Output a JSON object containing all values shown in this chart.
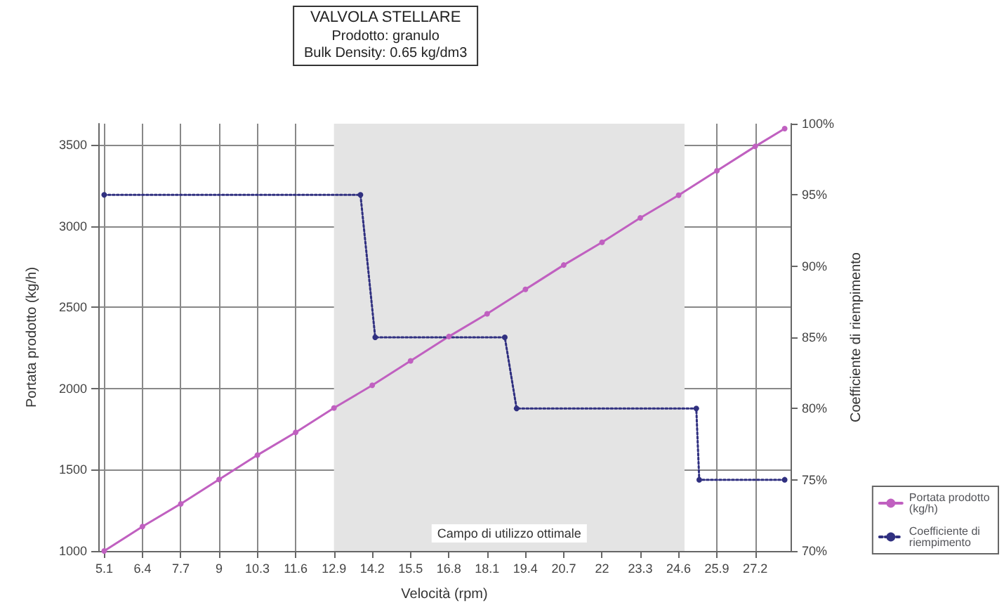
{
  "chart_data": {
    "type": "line",
    "title": "VALVOLA STELLARE",
    "subtitle": "Prodotto: granulo\nBulk Density: 0.65 kg/dm3",
    "xlabel": "Velocità (rpm)",
    "ylabel": "Portata prodotto (kg/h)",
    "y2label": "Coefficiente di riempimento",
    "xlim": [
      4.9,
      28.4
    ],
    "xticks": [
      5.1,
      6.4,
      7.7,
      9.0,
      10.3,
      11.6,
      12.9,
      14.2,
      15.5,
      16.8,
      18.1,
      19.4,
      20.7,
      22.0,
      23.3,
      24.6,
      25.9,
      27.2
    ],
    "ylim": [
      1000,
      3630
    ],
    "yticks": [
      1000,
      1500,
      2000,
      2500,
      3000,
      3500
    ],
    "y2lim": [
      70,
      100
    ],
    "y2ticks": [
      {
        "value": 70,
        "label": "70%"
      },
      {
        "value": 75,
        "label": "75%"
      },
      {
        "value": 80,
        "label": "80%"
      },
      {
        "value": 85,
        "label": "85%"
      },
      {
        "value": 90,
        "label": "90%"
      },
      {
        "value": 95,
        "label": "95%"
      },
      {
        "value": 100,
        "label": "100%"
      }
    ],
    "series": [
      {
        "name": "Portata prodotto (kg/h)",
        "color": "#c060c0",
        "line_style": "solid",
        "x": [
          5.1,
          6.4,
          7.7,
          9.0,
          10.3,
          11.6,
          12.9,
          14.2,
          15.5,
          16.8,
          18.1,
          19.4,
          20.7,
          22.0,
          23.3,
          24.6,
          25.9,
          27.2,
          28.2
        ],
        "values": [
          1000,
          1150,
          1290,
          1440,
          1590,
          1730,
          1880,
          2020,
          2170,
          2320,
          2460,
          2610,
          2760,
          2900,
          3050,
          3190,
          3340,
          3490,
          3600
        ]
      },
      {
        "name": "Coefficiente di riempimento",
        "color": "#303080",
        "line_style": "dotted",
        "axis": "y2",
        "x": [
          5.1,
          13.8,
          14.3,
          18.7,
          19.1,
          25.2,
          25.3,
          28.2
        ],
        "values": [
          95,
          95,
          85,
          85,
          80,
          80,
          75,
          75
        ]
      }
    ],
    "bands": [
      {
        "axis": "x",
        "from": 12.9,
        "to": 24.8,
        "label": "Campo di utilizzo ottimale",
        "color": "#e4e4e4"
      }
    ],
    "grid": true,
    "legend": "bottom right",
    "marker": "circle"
  }
}
